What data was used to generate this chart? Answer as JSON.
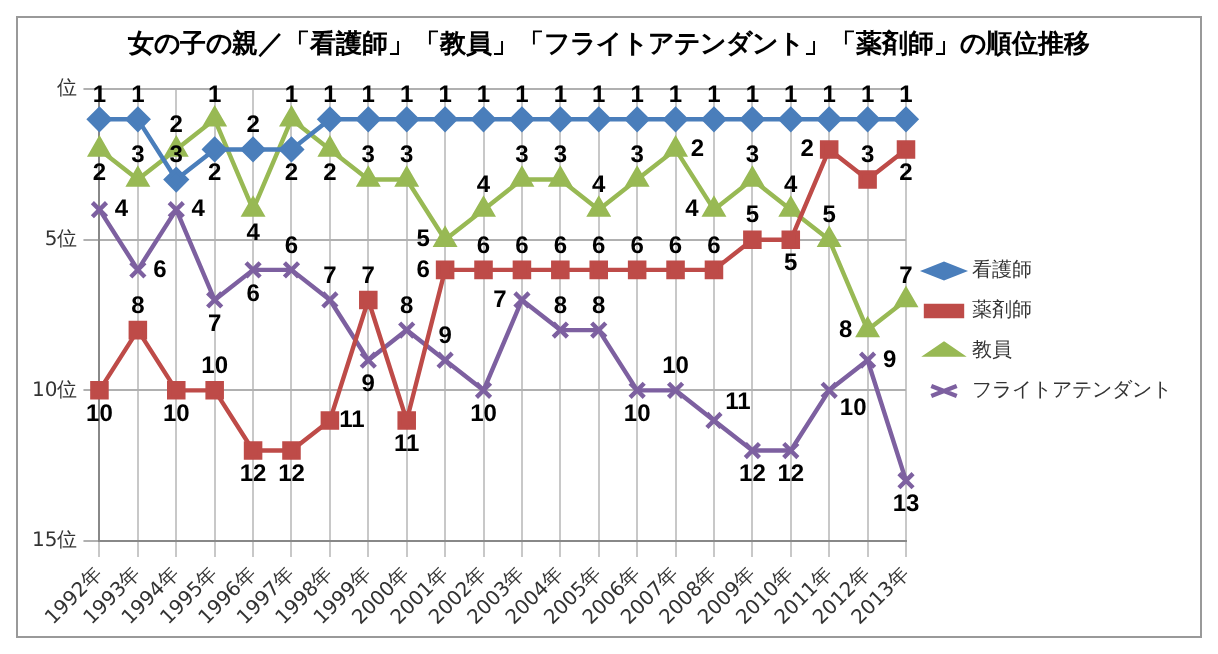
{
  "chart_data": {
    "type": "line",
    "title": "女の子の親／「看護師」「教員」「フライトアテンダント」「薬剤師」の順位推移",
    "categories": [
      "1992年",
      "1993年",
      "1994年",
      "1995年",
      "1996年",
      "1997年",
      "1998年",
      "1999年",
      "2000年",
      "2001年",
      "2002年",
      "2003年",
      "2004年",
      "2005年",
      "2006年",
      "2007年",
      "2008年",
      "2009年",
      "2010年",
      "2011年",
      "2012年",
      "2013年"
    ],
    "series": [
      {
        "name": "看護師",
        "color": "#4a7ebb",
        "marker": "diamond",
        "values": [
          1,
          1,
          3,
          2,
          2,
          2,
          1,
          1,
          1,
          1,
          1,
          1,
          1,
          1,
          1,
          1,
          1,
          1,
          1,
          1,
          1,
          1
        ]
      },
      {
        "name": "薬剤師",
        "color": "#be4b48",
        "marker": "square",
        "values": [
          10,
          8,
          10,
          10,
          12,
          12,
          11,
          7,
          11,
          6,
          6,
          6,
          6,
          6,
          6,
          6,
          6,
          5,
          5,
          2,
          3,
          2
        ]
      },
      {
        "name": "教員",
        "color": "#98b954",
        "marker": "triangle",
        "values": [
          2,
          3,
          2,
          1,
          4,
          1,
          2,
          3,
          3,
          5,
          4,
          3,
          3,
          4,
          3,
          2,
          4,
          3,
          4,
          5,
          8,
          7
        ]
      },
      {
        "name": "フライトアテンダント",
        "color": "#7d60a0",
        "marker": "cross",
        "values": [
          4,
          6,
          4,
          7,
          6,
          6,
          7,
          9,
          8,
          9,
          10,
          7,
          8,
          8,
          10,
          10,
          11,
          12,
          12,
          10,
          9,
          13
        ]
      }
    ],
    "ylim": [
      15,
      0
    ],
    "yticks": [
      {
        "value": 0,
        "label": "位"
      },
      {
        "value": 5,
        "label": "5位"
      },
      {
        "value": 10,
        "label": "10位"
      },
      {
        "value": 15,
        "label": "15位"
      }
    ],
    "grid": true,
    "legend": "right",
    "data_labels": true
  }
}
